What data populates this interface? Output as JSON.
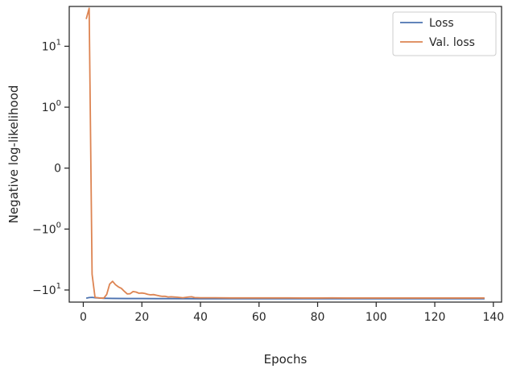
{
  "chart_data": {
    "type": "line",
    "title": "",
    "xlabel": "Epochs",
    "ylabel": "Negative log-likelihood",
    "yscale": "symlog",
    "xlim": [
      -4.8,
      142.8
    ],
    "ylim": [
      -15.8,
      45
    ],
    "x_ticks": [
      0,
      20,
      40,
      60,
      80,
      100,
      120,
      140
    ],
    "y_ticks": [
      {
        "value": 10,
        "label": "10",
        "exp": "1"
      },
      {
        "value": 1,
        "label": "10",
        "exp": "0"
      },
      {
        "value": 0,
        "label": "0",
        "exp": ""
      },
      {
        "value": -1,
        "label": "−10",
        "exp": "0"
      },
      {
        "value": -10,
        "label": "−10",
        "exp": "1"
      }
    ],
    "grid": false,
    "legend_position": "top-right",
    "series": [
      {
        "name": "Loss",
        "color": "#4c72b0",
        "x": [
          1,
          2,
          3,
          4,
          5,
          6,
          7,
          8,
          10,
          15,
          20,
          25,
          30,
          40,
          50,
          60,
          70,
          80,
          90,
          100,
          110,
          120,
          130,
          137
        ],
        "y": [
          -13.6,
          -13.3,
          -13.2,
          -13.4,
          -13.5,
          -13.6,
          -13.7,
          -13.7,
          -13.75,
          -13.8,
          -13.8,
          -13.85,
          -13.85,
          -13.9,
          -13.9,
          -13.9,
          -13.9,
          -13.9,
          -13.9,
          -13.92,
          -13.92,
          -13.92,
          -13.92,
          -13.92
        ]
      },
      {
        "name": "Val. loss",
        "color": "#dd8452",
        "x": [
          1,
          2,
          3,
          4,
          5,
          6,
          7,
          8,
          9,
          10,
          11,
          12,
          13,
          14,
          15,
          16,
          17,
          18,
          19,
          20,
          21,
          22,
          23,
          24,
          25,
          26,
          27,
          28,
          29,
          30,
          32,
          34,
          36,
          37,
          38,
          40,
          45,
          50,
          55,
          60,
          65,
          70,
          75,
          80,
          85,
          90,
          95,
          100,
          105,
          110,
          115,
          120,
          125,
          130,
          137
        ],
        "y": [
          28,
          42,
          -5.5,
          -13.2,
          -13.4,
          -13.6,
          -13.6,
          -11.8,
          -8.0,
          -7.2,
          -8.2,
          -8.9,
          -9.4,
          -10.5,
          -11.6,
          -11.5,
          -10.6,
          -10.8,
          -11.3,
          -11.2,
          -11.4,
          -11.8,
          -12.0,
          -11.9,
          -12.2,
          -12.5,
          -12.7,
          -12.7,
          -13.0,
          -12.9,
          -13.1,
          -13.4,
          -13.0,
          -12.9,
          -13.3,
          -13.4,
          -13.4,
          -13.5,
          -13.5,
          -13.5,
          -13.5,
          -13.5,
          -13.55,
          -13.55,
          -13.5,
          -13.55,
          -13.55,
          -13.55,
          -13.55,
          -13.55,
          -13.55,
          -13.55,
          -13.55,
          -13.55,
          -13.55
        ]
      }
    ]
  }
}
